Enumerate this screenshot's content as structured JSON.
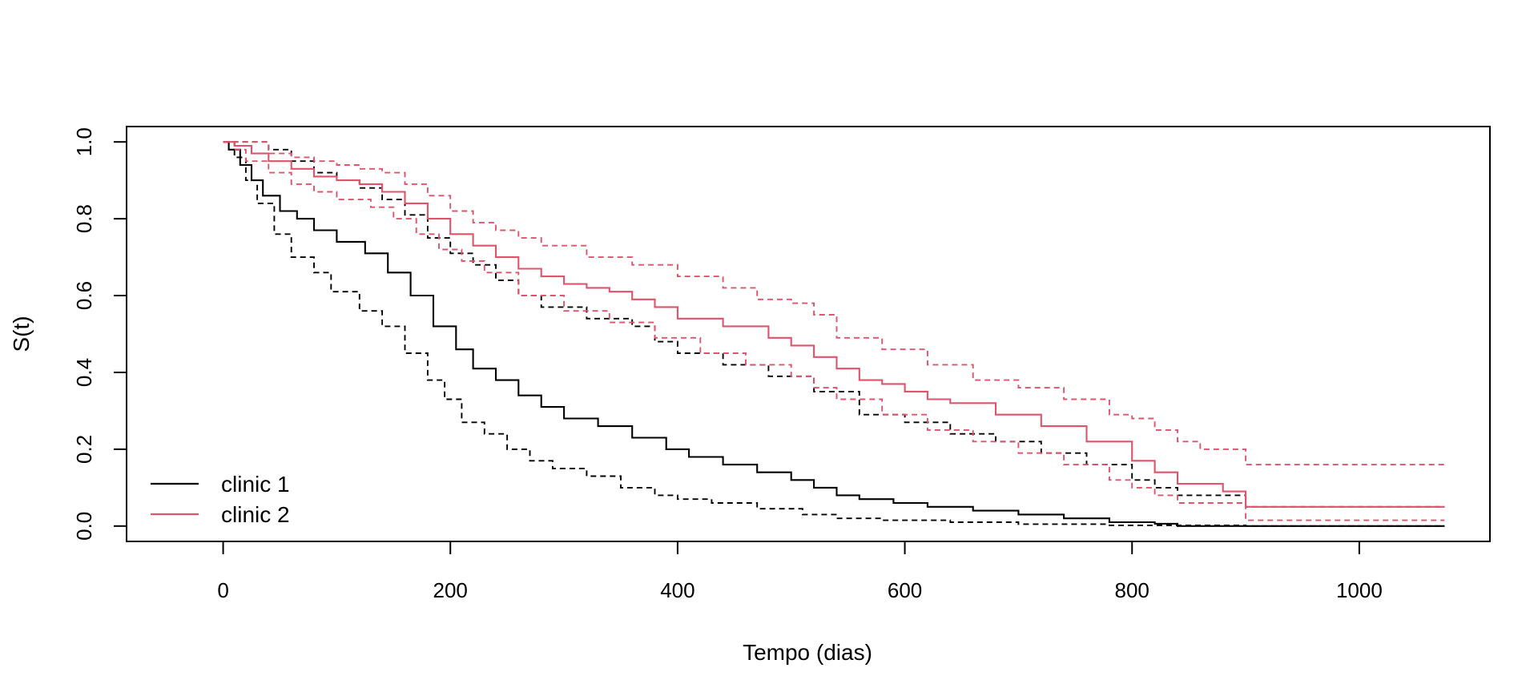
{
  "chart_data": {
    "type": "line",
    "step": true,
    "xlabel": "Tempo (dias)",
    "ylabel": "S(t)",
    "xlim": [
      -85,
      1115
    ],
    "ylim": [
      -0.04,
      1.04
    ],
    "xticks": [
      "0",
      "200",
      "400",
      "600",
      "800",
      "1000"
    ],
    "xtick_values": [
      0,
      200,
      400,
      600,
      800,
      1000
    ],
    "yticks": [
      "0.0",
      "0.2",
      "0.4",
      "0.6",
      "0.8",
      "1.0"
    ],
    "ytick_values": [
      0,
      0.2,
      0.4,
      0.6,
      0.8,
      1.0
    ],
    "grid": false,
    "legend_position": "bottom-left",
    "legend": [
      {
        "label": "clinic 1",
        "color": "#000000"
      },
      {
        "label": "clinic 2",
        "color": "#DF536B"
      }
    ],
    "series": [
      {
        "name": "clinic 1",
        "role": "estimate",
        "color": "#000000",
        "dash": "solid",
        "x": [
          0,
          5,
          15,
          25,
          35,
          50,
          65,
          80,
          100,
          125,
          145,
          165,
          185,
          205,
          220,
          240,
          260,
          280,
          300,
          330,
          360,
          390,
          410,
          440,
          470,
          500,
          520,
          540,
          560,
          590,
          620,
          660,
          700,
          740,
          780,
          820,
          840,
          900,
          1075
        ],
        "y": [
          1.0,
          0.98,
          0.94,
          0.9,
          0.86,
          0.82,
          0.8,
          0.77,
          0.74,
          0.71,
          0.66,
          0.6,
          0.52,
          0.46,
          0.41,
          0.38,
          0.34,
          0.31,
          0.28,
          0.26,
          0.23,
          0.2,
          0.18,
          0.16,
          0.14,
          0.12,
          0.1,
          0.08,
          0.07,
          0.06,
          0.05,
          0.04,
          0.03,
          0.02,
          0.01,
          0.006,
          0.0,
          0.0,
          0.0
        ]
      },
      {
        "name": "",
        "role": "lower-ci",
        "color": "#000000",
        "dash": "dashed",
        "x": [
          0,
          10,
          20,
          30,
          45,
          60,
          80,
          95,
          120,
          140,
          160,
          180,
          195,
          210,
          230,
          250,
          270,
          290,
          320,
          350,
          380,
          400,
          430,
          470,
          510,
          540,
          580,
          640,
          700,
          780,
          900,
          1075
        ],
        "y": [
          1.0,
          0.96,
          0.9,
          0.84,
          0.76,
          0.7,
          0.66,
          0.61,
          0.56,
          0.52,
          0.45,
          0.38,
          0.33,
          0.27,
          0.24,
          0.2,
          0.17,
          0.15,
          0.13,
          0.1,
          0.08,
          0.07,
          0.06,
          0.045,
          0.03,
          0.02,
          0.015,
          0.01,
          0.005,
          0.002,
          0.0,
          0.0
        ]
      },
      {
        "name": "",
        "role": "upper-ci",
        "color": "#000000",
        "dash": "dashed",
        "x": [
          0,
          25,
          40,
          60,
          80,
          100,
          120,
          140,
          160,
          180,
          200,
          220,
          240,
          260,
          280,
          320,
          360,
          380,
          400,
          440,
          480,
          520,
          560,
          600,
          640,
          680,
          720,
          760,
          800,
          820,
          840,
          900,
          1075
        ],
        "y": [
          1.0,
          1.0,
          0.98,
          0.95,
          0.92,
          0.9,
          0.88,
          0.85,
          0.81,
          0.75,
          0.71,
          0.68,
          0.64,
          0.6,
          0.57,
          0.54,
          0.52,
          0.48,
          0.45,
          0.42,
          0.39,
          0.35,
          0.29,
          0.27,
          0.24,
          0.22,
          0.19,
          0.16,
          0.12,
          0.1,
          0.08,
          0.05,
          0.05
        ]
      },
      {
        "name": "clinic 2",
        "role": "estimate",
        "color": "#DF536B",
        "dash": "solid",
        "x": [
          0,
          10,
          25,
          40,
          60,
          80,
          100,
          120,
          140,
          160,
          180,
          200,
          220,
          240,
          260,
          280,
          300,
          320,
          340,
          360,
          380,
          400,
          440,
          480,
          500,
          520,
          540,
          560,
          580,
          600,
          620,
          640,
          680,
          720,
          760,
          800,
          820,
          840,
          880,
          900,
          1075
        ],
        "y": [
          1.0,
          0.99,
          0.97,
          0.95,
          0.93,
          0.91,
          0.9,
          0.89,
          0.87,
          0.84,
          0.8,
          0.76,
          0.73,
          0.7,
          0.67,
          0.65,
          0.63,
          0.62,
          0.61,
          0.59,
          0.57,
          0.54,
          0.52,
          0.49,
          0.47,
          0.44,
          0.41,
          0.38,
          0.37,
          0.35,
          0.33,
          0.32,
          0.29,
          0.26,
          0.22,
          0.17,
          0.14,
          0.11,
          0.09,
          0.05,
          0.05
        ]
      },
      {
        "name": "",
        "role": "lower-ci",
        "color": "#DF536B",
        "dash": "dashed",
        "x": [
          0,
          10,
          20,
          40,
          60,
          80,
          100,
          130,
          150,
          170,
          190,
          210,
          230,
          260,
          300,
          340,
          380,
          420,
          460,
          500,
          520,
          540,
          580,
          620,
          660,
          700,
          740,
          780,
          800,
          820,
          840,
          900,
          1075
        ],
        "y": [
          1.0,
          0.98,
          0.95,
          0.92,
          0.89,
          0.87,
          0.85,
          0.83,
          0.8,
          0.76,
          0.72,
          0.69,
          0.66,
          0.6,
          0.56,
          0.53,
          0.49,
          0.45,
          0.42,
          0.39,
          0.36,
          0.33,
          0.29,
          0.25,
          0.22,
          0.19,
          0.16,
          0.12,
          0.1,
          0.08,
          0.06,
          0.015,
          0.015
        ]
      },
      {
        "name": "",
        "role": "upper-ci",
        "color": "#DF536B",
        "dash": "dashed",
        "x": [
          0,
          20,
          40,
          60,
          80,
          100,
          120,
          140,
          160,
          180,
          200,
          220,
          240,
          260,
          280,
          320,
          360,
          400,
          440,
          470,
          500,
          520,
          540,
          580,
          620,
          660,
          700,
          740,
          780,
          800,
          820,
          840,
          860,
          900,
          1075
        ],
        "y": [
          1.0,
          1.0,
          0.97,
          0.96,
          0.95,
          0.94,
          0.93,
          0.92,
          0.89,
          0.86,
          0.82,
          0.79,
          0.77,
          0.75,
          0.73,
          0.7,
          0.68,
          0.65,
          0.62,
          0.59,
          0.58,
          0.55,
          0.49,
          0.46,
          0.42,
          0.38,
          0.36,
          0.33,
          0.29,
          0.28,
          0.25,
          0.22,
          0.2,
          0.16,
          0.16
        ]
      }
    ]
  }
}
